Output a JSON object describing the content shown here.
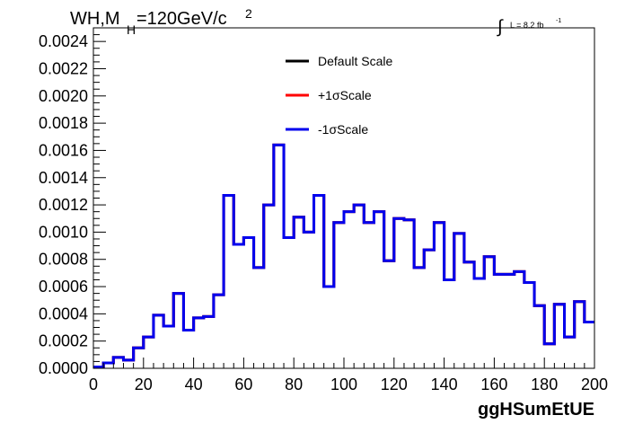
{
  "chart_data": {
    "type": "line",
    "title_main": "WH,M",
    "title_sub": "H",
    "title_rest": "=120GeV/c",
    "title_sup": "2",
    "lumi_integral": "∫",
    "lumi_text": "L = 8.2 fb",
    "lumi_sup": "-1",
    "xlabel": "ggHSumEtUE",
    "ylabel": "",
    "xlim": [
      0,
      200
    ],
    "ylim": [
      0,
      0.0025
    ],
    "xticks": [
      0,
      20,
      40,
      60,
      80,
      100,
      120,
      140,
      160,
      180,
      200
    ],
    "xtick_labels": [
      "0",
      "20",
      "40",
      "60",
      "80",
      "100",
      "120",
      "140",
      "160",
      "180",
      "200"
    ],
    "yticks": [
      0,
      0.0002,
      0.0004,
      0.0006,
      0.0008,
      0.001,
      0.0012,
      0.0014,
      0.0016,
      0.0018,
      0.002,
      0.0022,
      0.0024
    ],
    "ytick_labels": [
      "0.0000",
      "0.0002",
      "0.0004",
      "0.0006",
      "0.0008",
      "0.0010",
      "0.0012",
      "0.0014",
      "0.0016",
      "0.0018",
      "0.0020",
      "0.0022",
      "0.0024"
    ],
    "bin_width": 4,
    "x": [
      0,
      4,
      8,
      12,
      16,
      20,
      24,
      28,
      32,
      36,
      40,
      44,
      48,
      52,
      56,
      60,
      64,
      68,
      72,
      76,
      80,
      84,
      88,
      92,
      96,
      100,
      104,
      108,
      112,
      116,
      120,
      124,
      128,
      132,
      136,
      140,
      144,
      148,
      152,
      156,
      160,
      164,
      168,
      172,
      176,
      180,
      184,
      188,
      192,
      196
    ],
    "series": [
      {
        "name": "Default Scale",
        "color": "#000000",
        "values": [
          1e-05,
          4e-05,
          8e-05,
          6e-05,
          0.00015,
          0.00023,
          0.00039,
          0.00031,
          0.00055,
          0.00028,
          0.00037,
          0.00038,
          0.00054,
          0.00127,
          0.00091,
          0.00096,
          0.00074,
          0.0012,
          0.00164,
          0.00096,
          0.00111,
          0.001,
          0.00127,
          0.0006,
          0.00107,
          0.00115,
          0.0012,
          0.00107,
          0.00115,
          0.00079,
          0.0011,
          0.00109,
          0.00074,
          0.00087,
          0.00107,
          0.00065,
          0.00099,
          0.00078,
          0.00066,
          0.00082,
          0.00069,
          0.00069,
          0.00071,
          0.00063,
          0.00046,
          0.00018,
          0.00047,
          0.00023,
          0.00049,
          0.00034
        ]
      },
      {
        "name": "+1σScale",
        "color": "#ff0000",
        "values": [
          1e-05,
          4e-05,
          8e-05,
          6e-05,
          0.00015,
          0.00023,
          0.00039,
          0.00031,
          0.00055,
          0.00028,
          0.00037,
          0.00038,
          0.00054,
          0.00127,
          0.00091,
          0.00096,
          0.00074,
          0.0012,
          0.00164,
          0.00096,
          0.00111,
          0.001,
          0.00127,
          0.0006,
          0.00107,
          0.00115,
          0.0012,
          0.00107,
          0.00115,
          0.00079,
          0.0011,
          0.00109,
          0.00074,
          0.00087,
          0.00107,
          0.00065,
          0.00099,
          0.00078,
          0.00066,
          0.00082,
          0.00069,
          0.00069,
          0.00071,
          0.00063,
          0.00046,
          0.00018,
          0.00047,
          0.00023,
          0.00049,
          0.00034
        ]
      },
      {
        "name": "-1σScale",
        "color": "#0000ee",
        "values": [
          1e-05,
          4e-05,
          8e-05,
          6e-05,
          0.00015,
          0.00023,
          0.00039,
          0.00031,
          0.00055,
          0.00028,
          0.00037,
          0.00038,
          0.00054,
          0.00127,
          0.00091,
          0.00096,
          0.00074,
          0.0012,
          0.00164,
          0.00096,
          0.00111,
          0.001,
          0.00127,
          0.0006,
          0.00107,
          0.00115,
          0.0012,
          0.00107,
          0.00115,
          0.00079,
          0.0011,
          0.00109,
          0.00074,
          0.00087,
          0.00107,
          0.00065,
          0.00099,
          0.00078,
          0.00066,
          0.00082,
          0.00069,
          0.00069,
          0.00071,
          0.00063,
          0.00046,
          0.00018,
          0.00047,
          0.00023,
          0.00049,
          0.00034
        ]
      }
    ],
    "legend_position": "top-center",
    "grid": false
  }
}
